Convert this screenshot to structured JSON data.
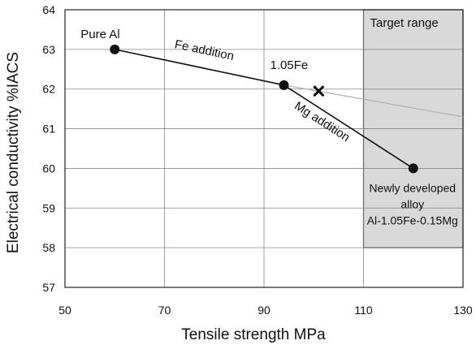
{
  "chart_data": {
    "type": "scatter",
    "title": "",
    "xlabel": "Tensile strength MPa",
    "ylabel": "Electrical conductivity %IACS",
    "xlim": [
      50,
      130
    ],
    "ylim": [
      57,
      64
    ],
    "xticks": [
      50,
      70,
      90,
      110,
      130
    ],
    "yticks": [
      57,
      58,
      59,
      60,
      61,
      62,
      63,
      64
    ],
    "grid": true,
    "points": [
      {
        "label": "Pure Al",
        "x": 60,
        "y": 63
      },
      {
        "label": "1.05Fe",
        "x": 94,
        "y": 62.1
      },
      {
        "label": "Newly developed alloy Al-1.05Fe-0.15Mg",
        "x": 120,
        "y": 60
      }
    ],
    "cross_marker": {
      "x": 101,
      "y": 61.95
    },
    "segments": [
      {
        "label": "Fe addition",
        "from": [
          60,
          63
        ],
        "to": [
          94,
          62.1
        ]
      },
      {
        "label": "Mg addition",
        "from": [
          94,
          62.1
        ],
        "to": [
          120,
          60
        ]
      }
    ],
    "trend_line": {
      "from": [
        94,
        62.1
      ],
      "to": [
        130,
        61.3
      ]
    },
    "target_range": {
      "label": "Target range",
      "x": [
        110,
        130
      ],
      "y": [
        58,
        64
      ]
    },
    "annotations": {
      "pure_al": "Pure Al",
      "fe_addition": "Fe addition",
      "fe105": "1.05Fe",
      "mg_addition": "Mg addition",
      "new_alloy_line1": "Newly developed",
      "new_alloy_line2": "alloy",
      "new_alloy_line3": "Al-1.05Fe-0.15Mg",
      "target_range": "Target range"
    }
  }
}
